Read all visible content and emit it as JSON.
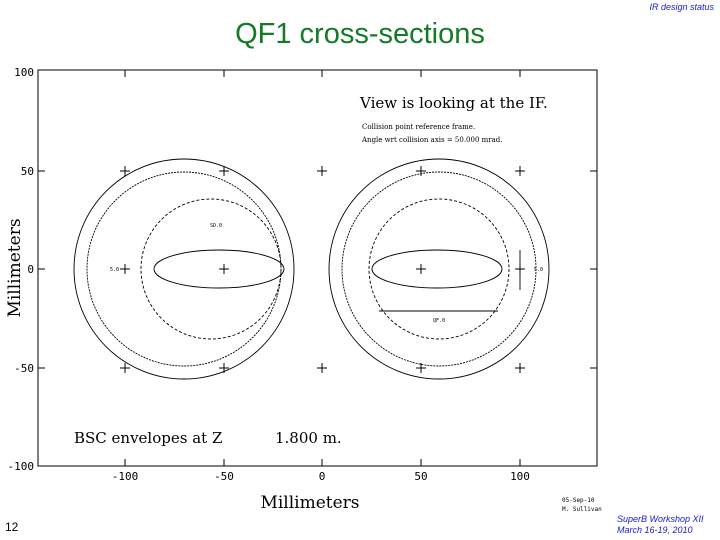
{
  "header": {
    "note": "IR design status"
  },
  "title": "QF1 cross-sections",
  "footer": {
    "slide_number": "12",
    "workshop": "SuperB Workshop XII",
    "dates": "March 16-19, 2010"
  },
  "plot": {
    "view_note": "View is looking at the IF.",
    "frame_note": "Collision point reference frame.",
    "angle_note": "Angle wrt collision axis = 50.000 mrad.",
    "envelope_note": "BSC envelopes at Z",
    "z_value": "1.800 m.",
    "x_axis_label": "Millimeters",
    "y_axis_label": "Millimeters",
    "x_ticks": [
      "-100",
      "-50",
      "0",
      "50",
      "100"
    ],
    "y_ticks": [
      "100",
      "50",
      "0",
      "-50",
      "-100"
    ],
    "x_range": [
      -150,
      140
    ],
    "y_range": [
      -100,
      100
    ],
    "left_element_label": "SD.0",
    "right_element_label": "QF.0",
    "left_beam_label": "5.0",
    "right_beam_label": "5.0",
    "date_stamp": "05-Sep-10",
    "author_stamp": "M. Sullivan"
  }
}
